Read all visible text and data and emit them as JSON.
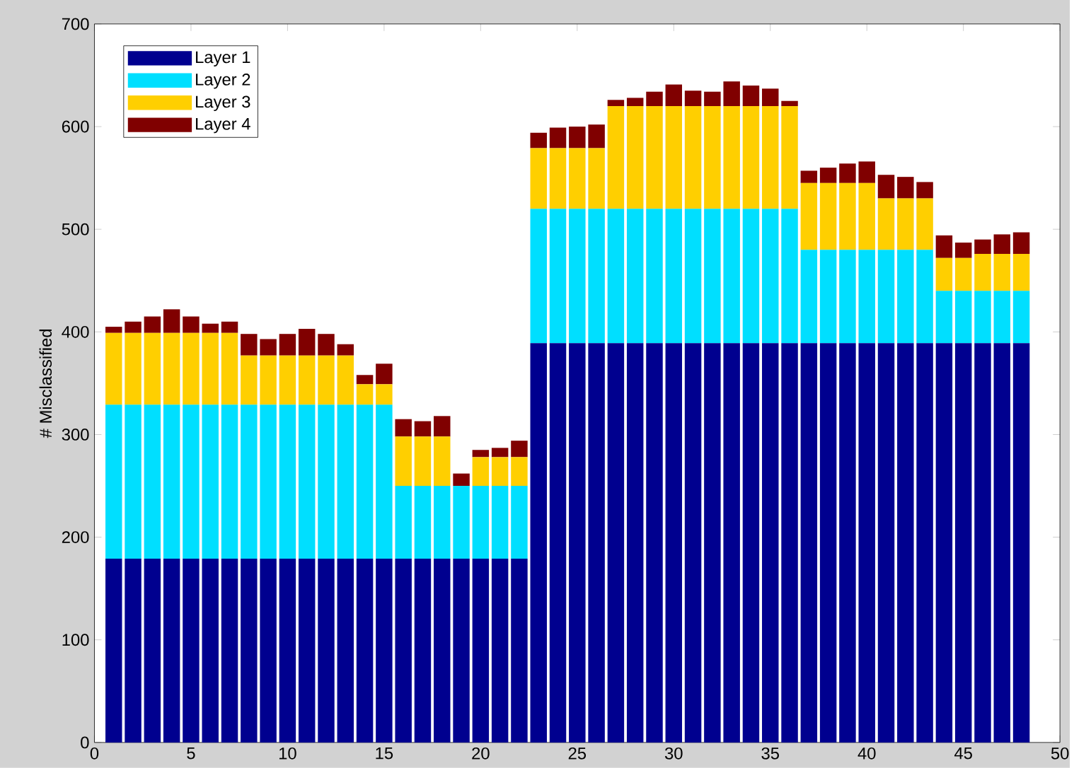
{
  "chart_data": {
    "type": "bar",
    "stacked": true,
    "ylabel": "# Misclassified",
    "x": [
      1,
      2,
      3,
      4,
      5,
      6,
      7,
      8,
      9,
      10,
      11,
      12,
      13,
      14,
      15,
      16,
      17,
      18,
      19,
      20,
      21,
      22,
      23,
      24,
      25,
      26,
      27,
      28,
      29,
      30,
      31,
      32,
      33,
      34,
      35,
      36,
      37,
      38,
      39,
      40,
      41,
      42,
      43,
      44,
      45,
      46,
      47,
      48
    ],
    "xlim": [
      0,
      50
    ],
    "xticks": [
      0,
      5,
      10,
      15,
      20,
      25,
      30,
      35,
      40,
      45,
      50
    ],
    "ylim": [
      0,
      700
    ],
    "yticks": [
      0,
      100,
      200,
      300,
      400,
      500,
      600,
      700
    ],
    "grid": false,
    "legend": "top left",
    "series": [
      {
        "name": "Layer 1",
        "color": "#00008f",
        "values": [
          179,
          179,
          179,
          179,
          179,
          179,
          179,
          179,
          179,
          179,
          179,
          179,
          179,
          179,
          179,
          179,
          179,
          179,
          179,
          179,
          179,
          179,
          389,
          389,
          389,
          389,
          389,
          389,
          389,
          389,
          389,
          389,
          389,
          389,
          389,
          389,
          389,
          389,
          389,
          389,
          389,
          389,
          389,
          389,
          389,
          389,
          389,
          389
        ]
      },
      {
        "name": "Layer 2",
        "color": "#00dfff",
        "values": [
          150,
          150,
          150,
          150,
          150,
          150,
          150,
          150,
          150,
          150,
          150,
          150,
          150,
          150,
          150,
          71,
          71,
          71,
          71,
          71,
          71,
          71,
          131,
          131,
          131,
          131,
          131,
          131,
          131,
          131,
          131,
          131,
          131,
          131,
          131,
          131,
          91,
          91,
          91,
          91,
          91,
          91,
          91,
          51,
          51,
          51,
          51,
          51
        ]
      },
      {
        "name": "Layer 3",
        "color": "#ffcf00",
        "values": [
          70,
          70,
          70,
          70,
          70,
          70,
          70,
          48,
          48,
          48,
          48,
          48,
          48,
          20,
          20,
          48,
          48,
          48,
          0,
          28,
          28,
          28,
          59,
          59,
          59,
          59,
          100,
          100,
          100,
          100,
          100,
          100,
          100,
          100,
          100,
          100,
          65,
          65,
          65,
          65,
          50,
          50,
          50,
          32,
          32,
          36,
          36,
          36
        ]
      },
      {
        "name": "Layer 4",
        "color": "#800000",
        "values": [
          6,
          11,
          16,
          23,
          16,
          9,
          11,
          21,
          16,
          21,
          26,
          21,
          11,
          9,
          20,
          17,
          15,
          20,
          12,
          7,
          9,
          16,
          15,
          20,
          21,
          23,
          6,
          8,
          14,
          21,
          15,
          14,
          24,
          20,
          17,
          5,
          12,
          15,
          19,
          21,
          23,
          21,
          16,
          22,
          15,
          14,
          19,
          21
        ]
      }
    ]
  }
}
